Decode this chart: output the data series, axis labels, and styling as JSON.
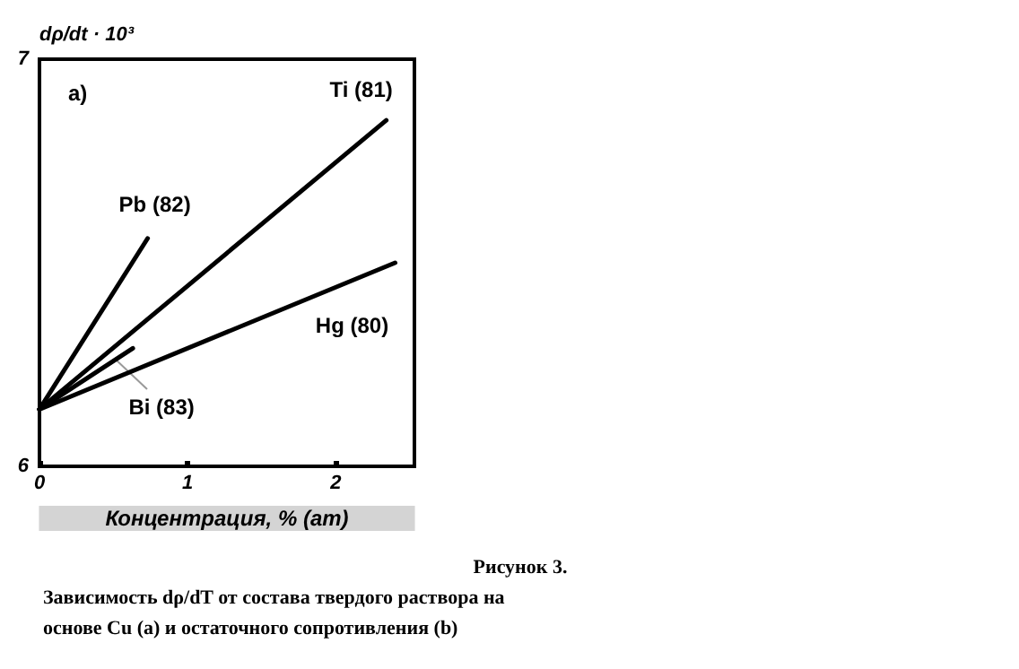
{
  "chart_data": {
    "type": "line",
    "title": "Рисунок 3.",
    "xlabel": "Концентрация, % (am)",
    "ylabel": "dρ/dt · 10³",
    "annotations": [
      "a)",
      "Зависимость dρ/dT от состава твердого раствора на основе Cu (a) и остаточного сопротивления (b)"
    ],
    "xlim": [
      0,
      2.53
    ],
    "xticks": [
      0,
      1,
      2
    ],
    "ylim": [
      6,
      7
    ],
    "yticks": [
      6,
      7
    ],
    "grid": false,
    "legend": false,
    "marker": "none",
    "line_style": "solid",
    "series": [
      {
        "name": "Ti (81)",
        "color": "#000000",
        "x": [
          0,
          2.34
        ],
        "values": [
          6.14,
          6.85
        ]
      },
      {
        "name": "Pb (82)",
        "color": "#000000",
        "x": [
          0,
          0.73
        ],
        "values": [
          6.14,
          6.56
        ]
      },
      {
        "name": "Hg (80)",
        "color": "#000000",
        "x": [
          0,
          2.4
        ],
        "values": [
          6.14,
          6.5
        ]
      },
      {
        "name": "Bi (83)",
        "color": "#000000",
        "x": [
          0,
          0.63
        ],
        "values": [
          6.14,
          6.29
        ]
      }
    ]
  }
}
